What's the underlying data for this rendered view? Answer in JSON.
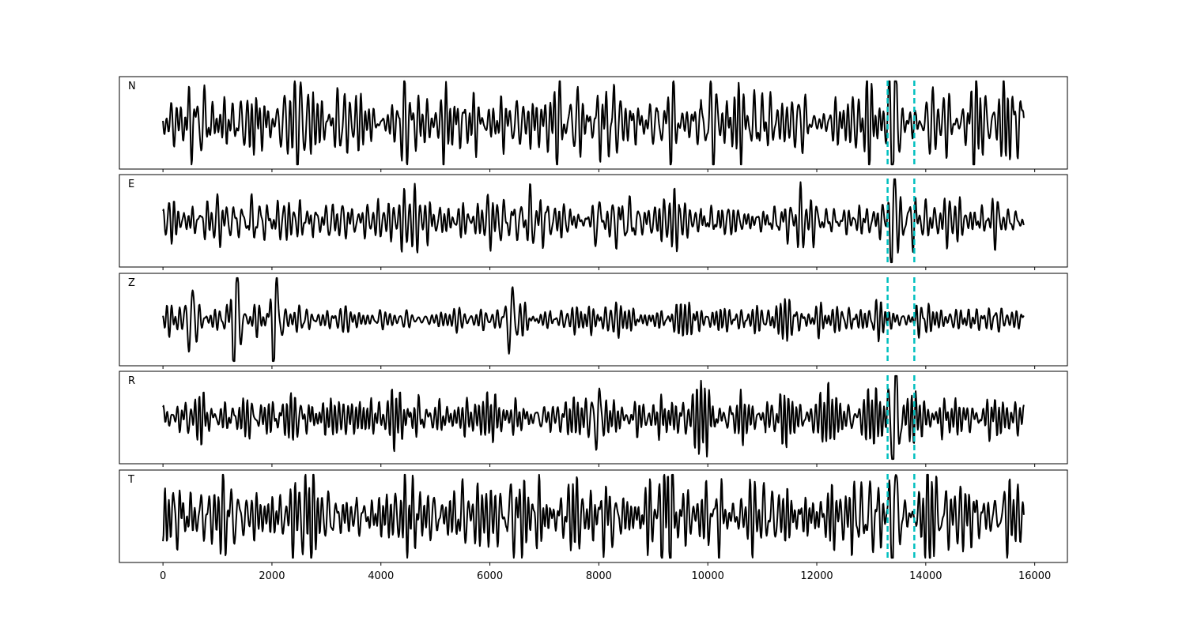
{
  "chart_data": {
    "type": "line",
    "title": "",
    "xlabel": "",
    "ylabel": "",
    "xlim": [
      -800,
      16600
    ],
    "x_ticks": [
      0,
      2000,
      4000,
      6000,
      8000,
      10000,
      12000,
      14000,
      16000
    ],
    "x_tick_labels": [
      "0",
      "2000",
      "4000",
      "6000",
      "8000",
      "10000",
      "12000",
      "14000",
      "16000"
    ],
    "x_range_traces": [
      0,
      15800
    ],
    "grid": false,
    "markers": {
      "style": "dashed",
      "color": "#00bfbf",
      "x": [
        13300,
        13790
      ]
    },
    "trace_color": "#000000",
    "panels": [
      {
        "label": "N",
        "trace_description": "continuous noise",
        "amplitude": 0.9,
        "events": [
          {
            "x": 13420,
            "amp": 1.0
          }
        ]
      },
      {
        "label": "E",
        "trace_description": "continuous noise",
        "amplitude": 0.55,
        "events": [
          {
            "x": 13400,
            "amp": 1.0
          },
          {
            "x": 7980,
            "amp": 0.55
          }
        ]
      },
      {
        "label": "Z",
        "trace_description": "continuous noise",
        "amplitude": 0.35,
        "events": [
          {
            "x": 1330,
            "amp": 1.0
          },
          {
            "x": 2060,
            "amp": 0.9
          },
          {
            "x": 510,
            "amp": 0.55
          },
          {
            "x": 6380,
            "amp": 0.6
          }
        ]
      },
      {
        "label": "R",
        "trace_description": "continuous noise",
        "amplitude": 0.5,
        "events": [
          {
            "x": 13420,
            "amp": 1.0
          },
          {
            "x": 7980,
            "amp": 0.55
          }
        ]
      },
      {
        "label": "T",
        "trace_description": "continuous noise",
        "amplitude": 0.95,
        "events": [
          {
            "x": 13420,
            "amp": 0.95
          }
        ]
      }
    ]
  }
}
